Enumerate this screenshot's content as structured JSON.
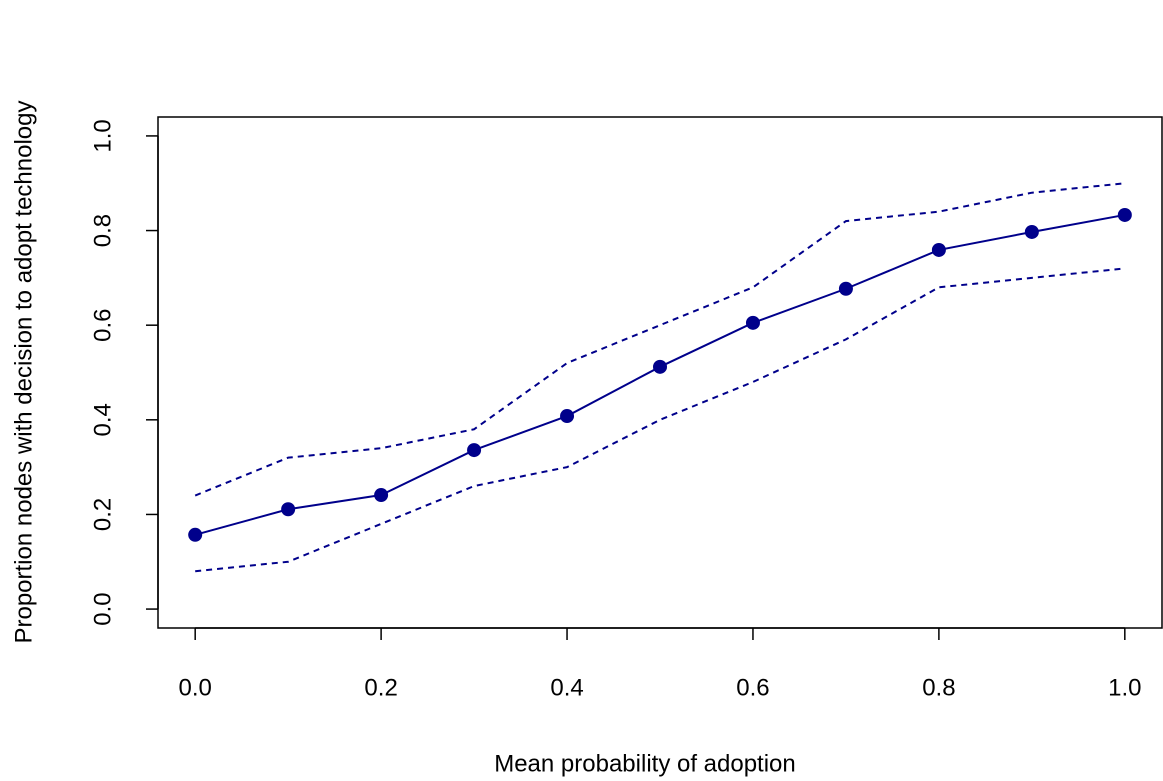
{
  "chart_data": {
    "type": "line",
    "xlabel": "Mean probability of adoption",
    "ylabel": "Proportion nodes with decision to adopt technology",
    "x": [
      0,
      0.1,
      0.2,
      0.3,
      0.4,
      0.5,
      0.6,
      0.7,
      0.8,
      0.9,
      1
    ],
    "series": [
      {
        "color": "#00008b",
        "linestyle": "solid",
        "marker": true,
        "values": [
          0.157,
          0.211,
          0.241,
          0.336,
          0.408,
          0.512,
          0.605,
          0.677,
          0.759,
          0.797,
          0.833
        ]
      },
      {
        "color": "#00008b",
        "linestyle": "dashed",
        "marker": false,
        "values": [
          0.24,
          0.32,
          0.34,
          0.38,
          0.52,
          0.6,
          0.68,
          0.82,
          0.84,
          0.88,
          0.9
        ]
      },
      {
        "color": "#00008b",
        "linestyle": "dashed",
        "marker": false,
        "values": [
          0.08,
          0.1,
          0.18,
          0.26,
          0.3,
          0.4,
          0.48,
          0.57,
          0.68,
          0.7,
          0.72
        ]
      }
    ],
    "xlim": [
      -0.04,
      1.04
    ],
    "ylim": [
      -0.04,
      1.04
    ],
    "xticks": [
      {
        "value": 0,
        "label": "0.0"
      },
      0.2,
      0.4,
      0.6,
      0.8,
      {
        "value": 1,
        "label": "1.0"
      }
    ],
    "yticks": [
      {
        "value": 0,
        "label": "0.0"
      },
      0.2,
      0.4,
      0.6,
      0.8,
      {
        "value": 1,
        "label": "1.0"
      }
    ]
  }
}
